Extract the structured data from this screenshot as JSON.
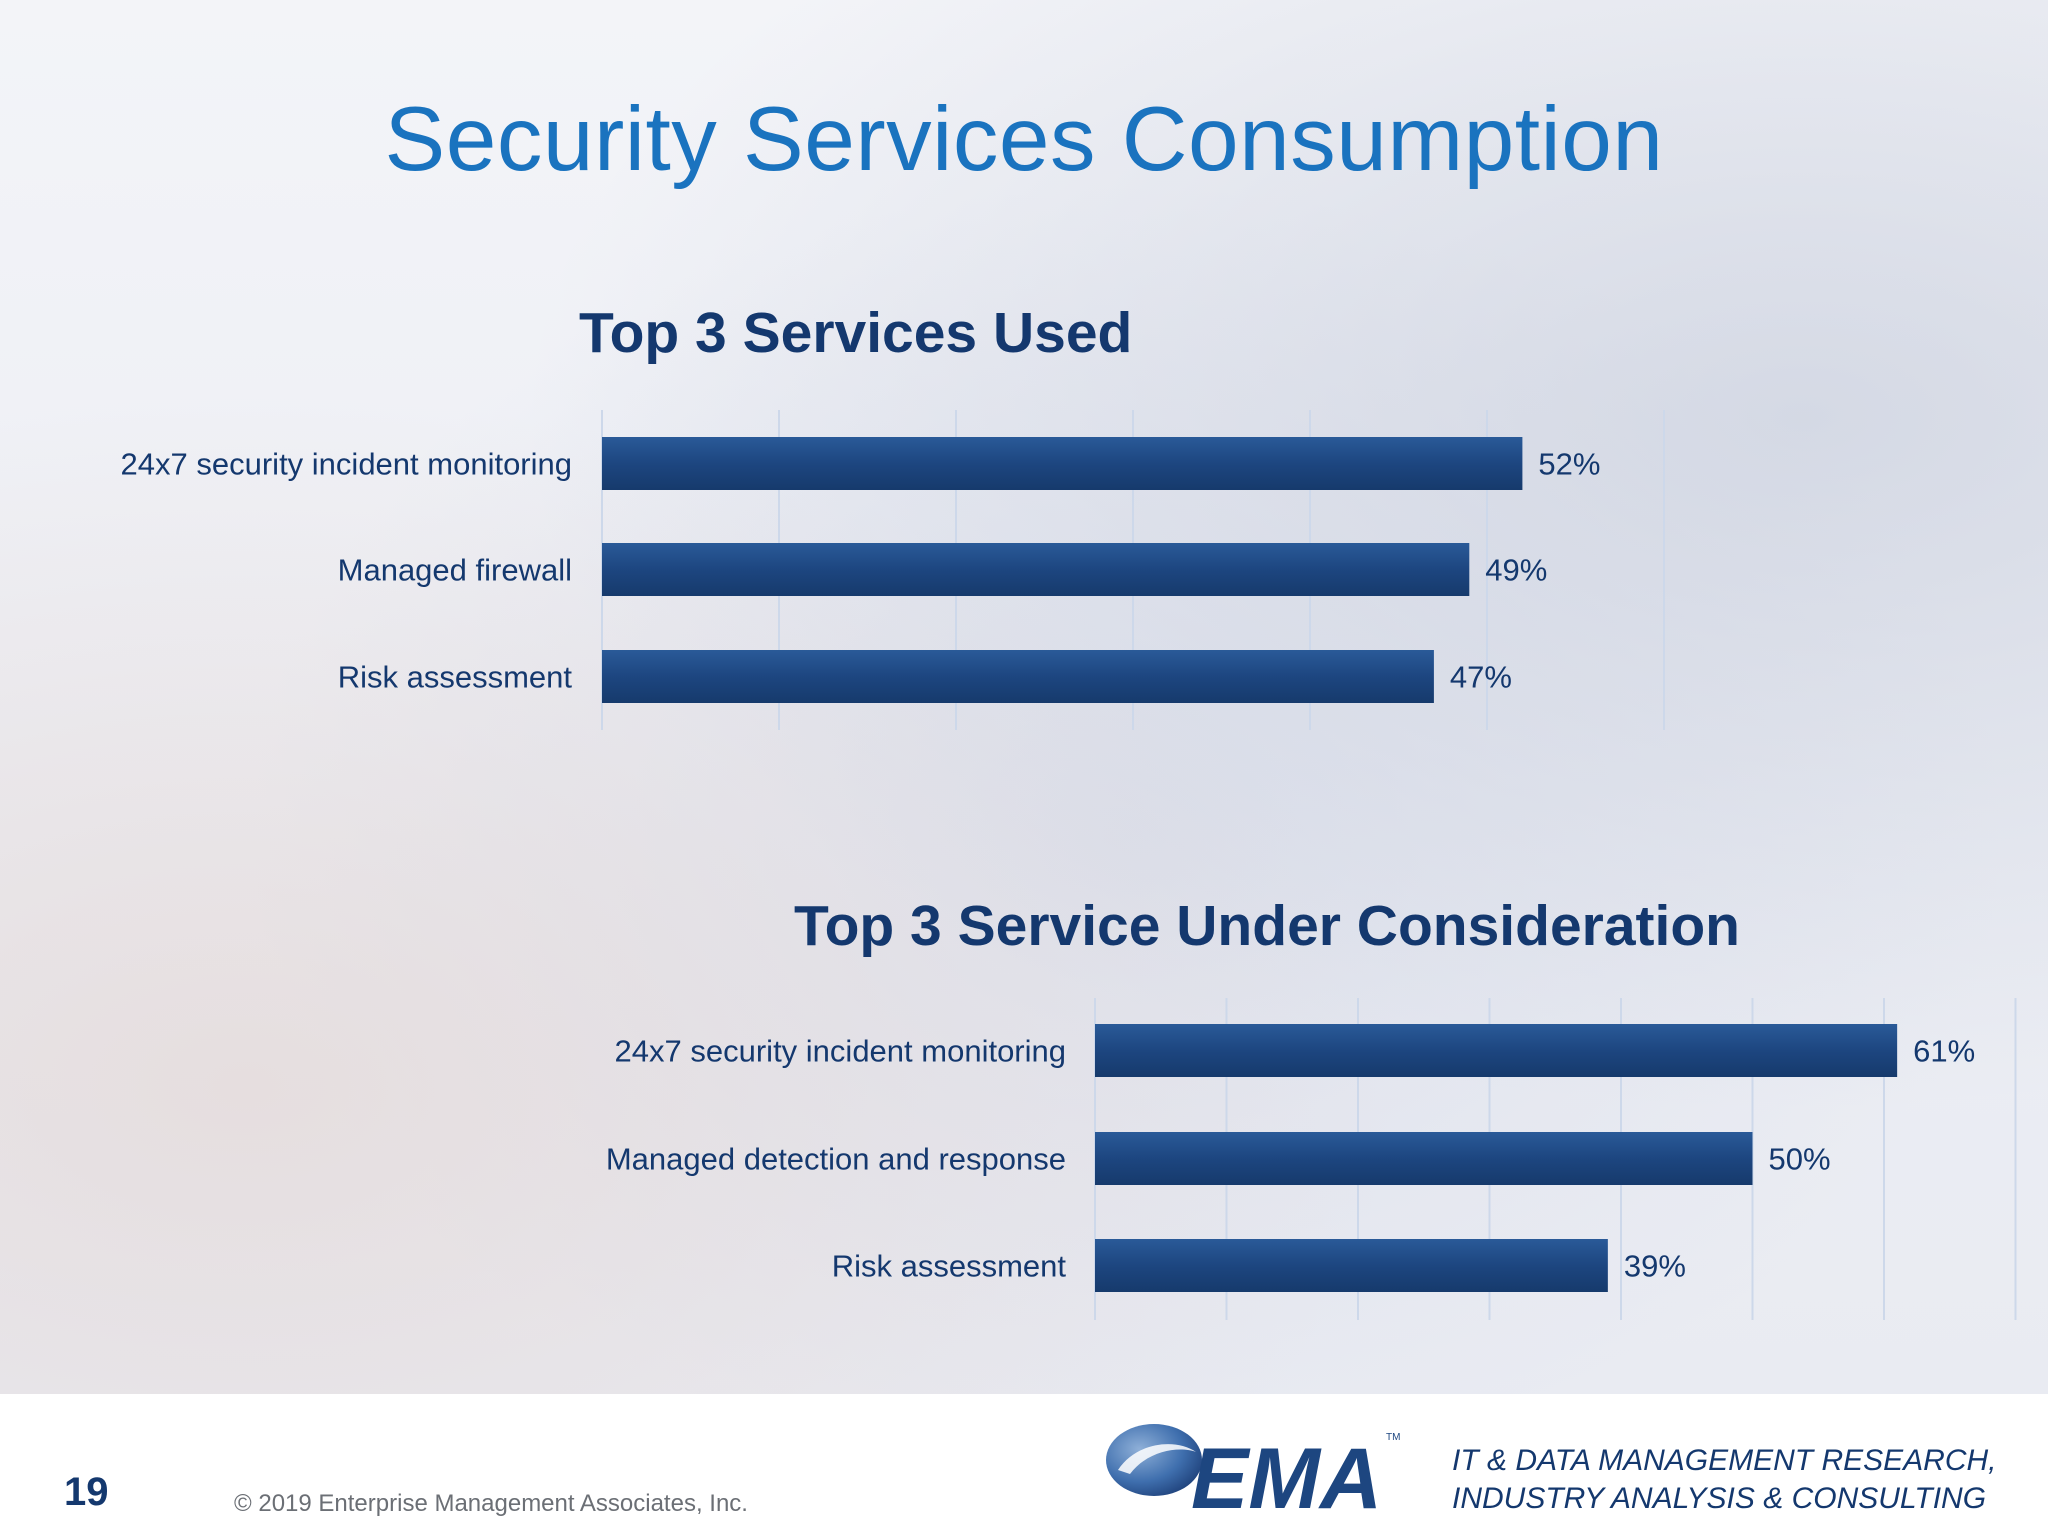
{
  "slide": {
    "title": "Security Services Consumption",
    "page_number": "19",
    "copyright": "© 2019 Enterprise Management Associates, Inc.",
    "logo_text": "EMA",
    "logo_mark": "TM",
    "tagline_line1": "IT & DATA MANAGEMENT RESEARCH,",
    "tagline_line2": "INDUSTRY ANALYSIS & CONSULTING"
  },
  "colors": {
    "title": "#1a73bf",
    "bar": "#1d4680",
    "text": "#14386e"
  },
  "chart_data": [
    {
      "type": "bar",
      "orientation": "horizontal",
      "title": "Top 3 Services Used",
      "categories": [
        "24x7 security incident monitoring",
        "Managed firewall",
        "Risk assessment"
      ],
      "values": [
        52,
        49,
        47
      ],
      "value_labels": [
        "52%",
        "49%",
        "47%"
      ],
      "xlim": [
        0,
        60
      ],
      "grid": true
    },
    {
      "type": "bar",
      "orientation": "horizontal",
      "title": "Top 3 Service Under Consideration",
      "categories": [
        "24x7 security incident monitoring",
        "Managed detection and response",
        "Risk assessment"
      ],
      "values": [
        61,
        50,
        39
      ],
      "value_labels": [
        "61%",
        "50%",
        "39%"
      ],
      "xlim": [
        0,
        70
      ],
      "grid": true
    }
  ]
}
